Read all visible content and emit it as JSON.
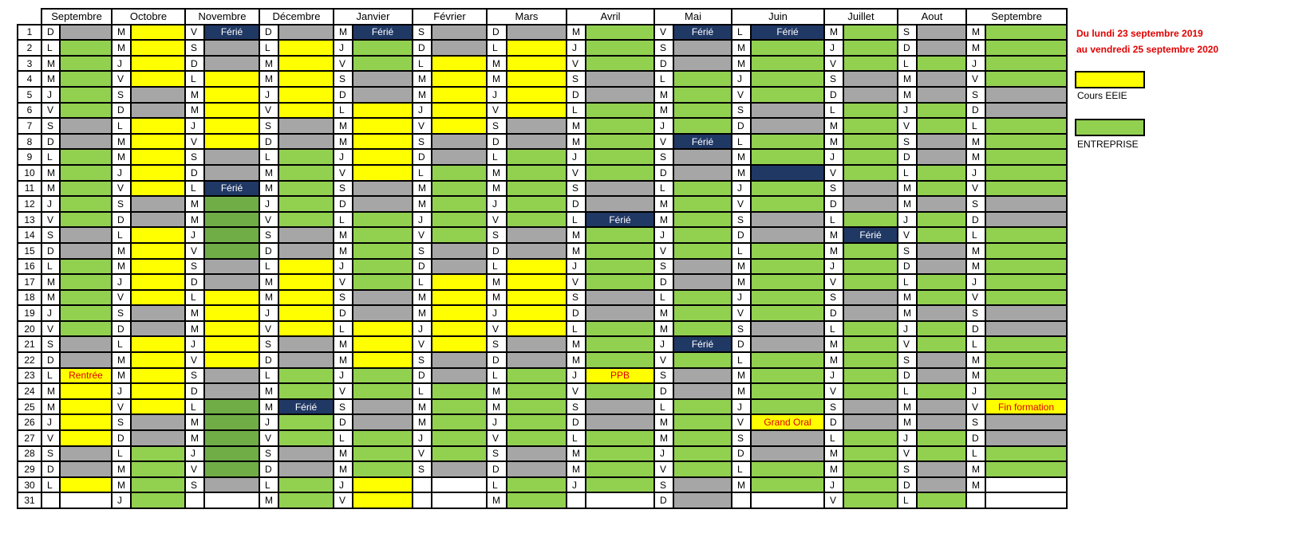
{
  "months": [
    "Septembre",
    "Octobre",
    "Novembre",
    "Décembre",
    "Janvier",
    "Février",
    "Mars",
    "Avril",
    "Mai",
    "Juin",
    "Juillet",
    "Aout",
    "Septembre"
  ],
  "period": [
    "Du lundi 23 septembre 2019",
    "au vendredi 25 septembre 2020"
  ],
  "legend": [
    {
      "label": "Cours EEIE",
      "color": "#ffff00"
    },
    {
      "label": "ENTREPRISE",
      "color": "#92d050"
    }
  ],
  "colors": {
    "y": "#ffff00",
    "g": "#a6a6a6",
    "G": "#92d050",
    "D": "#70ad47",
    "F": "#203864"
  },
  "rows": [
    [
      "D g",
      "M y",
      "V F:Férié",
      "D g",
      "M F:Férié",
      "S g",
      "D g",
      "M G",
      "V F:Férié",
      "L F:Férié",
      "M G",
      "S g",
      "M G"
    ],
    [
      "L G",
      "M y",
      "S g",
      "L y",
      "J G",
      "D g",
      "L y",
      "J G",
      "S g",
      "M G",
      "J G",
      "D g",
      "M G"
    ],
    [
      "M G",
      "J y",
      "D g",
      "M y",
      "V G",
      "L y",
      "M y",
      "V G",
      "D g",
      "M G",
      "V G",
      "L G",
      "J G"
    ],
    [
      "M G",
      "V y",
      "L y",
      "M y",
      "S g",
      "M y",
      "M y",
      "S g",
      "L G",
      "J G",
      "S g",
      "M g",
      "V G"
    ],
    [
      "J G",
      "S g",
      "M y",
      "J y",
      "D g",
      "M y",
      "J y",
      "D g",
      "M G",
      "V G",
      "D g",
      "M g",
      "S g"
    ],
    [
      "V G",
      "D g",
      "M y",
      "V y",
      "L y",
      "J y",
      "V y",
      "L G",
      "M G",
      "S g",
      "L G",
      "J G",
      "D g"
    ],
    [
      "S g",
      "L y",
      "J y",
      "S g",
      "M y",
      "V y",
      "S g",
      "M G",
      "J G",
      "D g",
      "M G",
      "V G",
      "L G"
    ],
    [
      "D g",
      "M y",
      "V y",
      "D g",
      "M y",
      "S g",
      "D g",
      "M G",
      "V F:Férié",
      "L G",
      "M G",
      "S g",
      "M G"
    ],
    [
      "L G",
      "M y",
      "S g",
      "L G",
      "J y",
      "D g",
      "L G",
      "J G",
      "S g",
      "M G",
      "J G",
      "D g",
      "M G"
    ],
    [
      "M G",
      "J y",
      "D g",
      "M G",
      "V y",
      "L G",
      "M G",
      "V G",
      "D g",
      "M n",
      "V G",
      "L G",
      "J G"
    ],
    [
      "M G",
      "V y",
      "L F:Férié",
      "M G",
      "S g",
      "M G",
      "M G",
      "S g",
      "L G",
      "J G",
      "S g",
      "M G",
      "V G"
    ],
    [
      "J G",
      "S g",
      "M D",
      "J G",
      "D g",
      "M G",
      "J G",
      "D g",
      "M G",
      "V G",
      "D g",
      "M g",
      "S g"
    ],
    [
      "V G",
      "D g",
      "M D",
      "V G",
      "L G",
      "J G",
      "V G",
      "L F:Férié",
      "M G",
      "S g",
      "L G",
      "J G",
      "D g"
    ],
    [
      "S g",
      "L y",
      "J D",
      "S g",
      "M G",
      "V G",
      "S g",
      "M G",
      "J G",
      "D g",
      "M F:Férié",
      "V G",
      "L G"
    ],
    [
      "D g",
      "M y",
      "V D",
      "D g",
      "M G",
      "S g",
      "D g",
      "M G",
      "V G",
      "L G",
      "M G",
      "S g",
      "M G"
    ],
    [
      "L G",
      "M y",
      "S g",
      "L y",
      "J G",
      "D g",
      "L y",
      "J G",
      "S g",
      "M G",
      "J G",
      "D g",
      "M G"
    ],
    [
      "M G",
      "J y",
      "D g",
      "M y",
      "V G",
      "L y",
      "M y",
      "V G",
      "D g",
      "M G",
      "V G",
      "L G",
      "J G"
    ],
    [
      "M G",
      "V y",
      "L y",
      "M y",
      "S g",
      "M y",
      "M y",
      "S g",
      "L G",
      "J G",
      "S g",
      "M G",
      "V G"
    ],
    [
      "J G",
      "S g",
      "M y",
      "J y",
      "D g",
      "M y",
      "J y",
      "D g",
      "M G",
      "V G",
      "D g",
      "M g",
      "S g"
    ],
    [
      "V G",
      "D g",
      "M y",
      "V y",
      "L y",
      "J y",
      "V y",
      "L G",
      "M G",
      "S g",
      "L G",
      "J G",
      "D g"
    ],
    [
      "S g",
      "L y",
      "J y",
      "S g",
      "M y",
      "V y",
      "S g",
      "M G",
      "J F:Férié",
      "D g",
      "M G",
      "V G",
      "L G"
    ],
    [
      "D g",
      "M y",
      "V y",
      "D g",
      "M y",
      "S g",
      "D g",
      "M G",
      "V G",
      "L G",
      "M G",
      "S g",
      "M G"
    ],
    [
      "L y:Rentrée",
      "M y",
      "S g",
      "L G",
      "J G",
      "D g",
      "L G",
      "J y:PPB",
      "S g",
      "M G",
      "J G",
      "D g",
      "M G"
    ],
    [
      "M y",
      "J y",
      "D g",
      "M G",
      "V G",
      "L G",
      "M G",
      "V G",
      "D g",
      "M G",
      "V G",
      "L G",
      "J G"
    ],
    [
      "M y",
      "V y",
      "L D",
      "M F:Férié",
      "S g",
      "M G",
      "M G",
      "S g",
      "L G",
      "J G",
      "S g",
      "M g",
      "V y:Fin formation"
    ],
    [
      "J y",
      "S g",
      "M D",
      "J G",
      "D g",
      "M G",
      "J G",
      "D g",
      "M G",
      "V y:Grand Oral",
      "D g",
      "M g",
      "S g"
    ],
    [
      "V y",
      "D g",
      "M D",
      "V G",
      "L G",
      "J G",
      "V G",
      "L G",
      "M G",
      "S g",
      "L G",
      "J G",
      "D g"
    ],
    [
      "S g",
      "L G",
      "J D",
      "S g",
      "M G",
      "V G",
      "S g",
      "M G",
      "J G",
      "D g",
      "M G",
      "V G",
      "L G"
    ],
    [
      "D g",
      "M G",
      "V D",
      "D g",
      "M G",
      "S g",
      "D g",
      "M G",
      "V G",
      "L G",
      "M G",
      "S g",
      "M G"
    ],
    [
      "L y",
      "M G",
      "S g",
      "L G",
      "J y",
      "  w",
      "L G",
      "J G",
      "S g",
      "M G",
      "J G",
      "D g",
      "M w"
    ],
    [
      "  w",
      "J G",
      "  w",
      "M G",
      "V y",
      "  w",
      "M G",
      "  w",
      "D g",
      "  w",
      "V G",
      "L G",
      "  w"
    ]
  ]
}
